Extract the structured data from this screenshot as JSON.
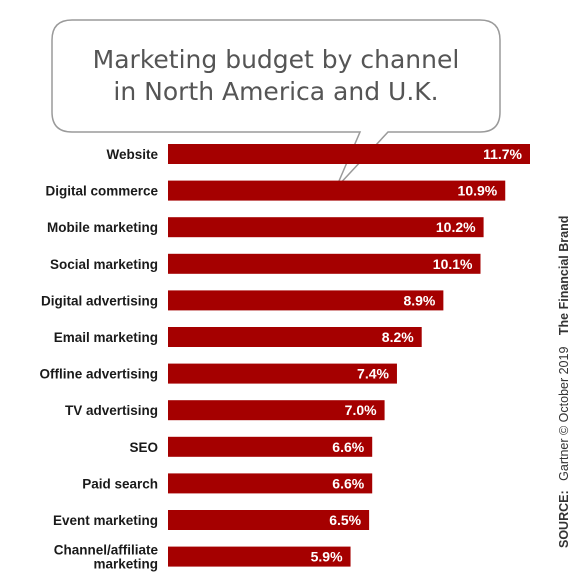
{
  "chart_data": {
    "type": "bar",
    "orientation": "horizontal",
    "title_lines": [
      "Marketing budget by channel",
      "in North America and U.K."
    ],
    "categories": [
      "Website",
      "Digital commerce",
      "Mobile marketing",
      "Social marketing",
      "Digital advertising",
      "Email marketing",
      "Offline advertising",
      "TV advertising",
      "SEO",
      "Paid search",
      "Event marketing",
      "Channel/affiliate marketing"
    ],
    "category_label_lines": [
      [
        "Website"
      ],
      [
        "Digital commerce"
      ],
      [
        "Mobile marketing"
      ],
      [
        "Social marketing"
      ],
      [
        "Digital advertising"
      ],
      [
        "Email marketing"
      ],
      [
        "Offline advertising"
      ],
      [
        "TV advertising"
      ],
      [
        "SEO"
      ],
      [
        "Paid search"
      ],
      [
        "Event marketing"
      ],
      [
        "Channel/affiliate",
        "marketing"
      ]
    ],
    "values": [
      11.7,
      10.9,
      10.2,
      10.1,
      8.9,
      8.2,
      7.4,
      7.0,
      6.6,
      6.6,
      6.5,
      5.9
    ],
    "value_labels": [
      "11.7%",
      "10.9%",
      "10.2%",
      "10.1%",
      "8.9%",
      "8.2%",
      "7.4%",
      "7.0%",
      "6.6%",
      "6.6%",
      "6.5%",
      "5.9%"
    ],
    "xlim": [
      0,
      11.7
    ],
    "grid": false,
    "bar_color": "#a50000",
    "source": {
      "label": "SOURCE:",
      "text": "Gartner © October 2019",
      "brand": "The Financial Brand"
    }
  }
}
